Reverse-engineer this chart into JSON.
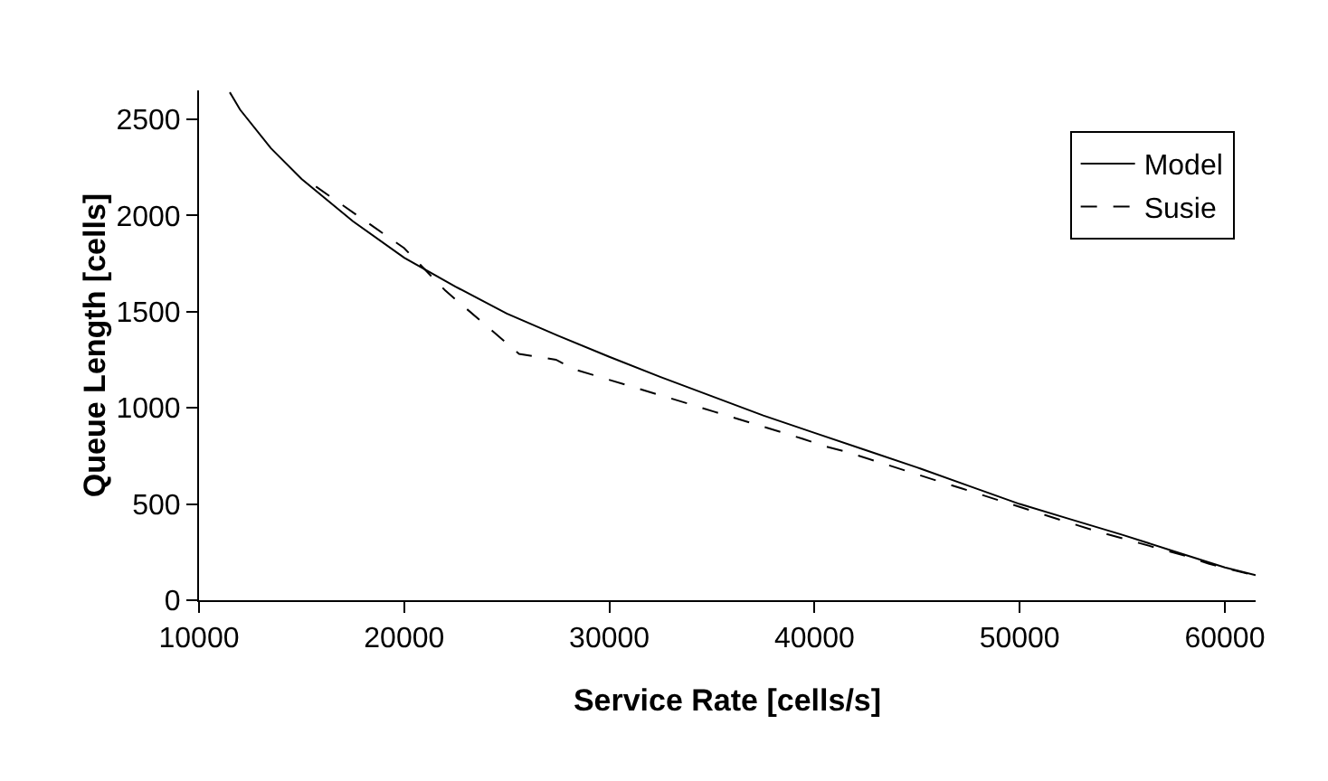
{
  "chart_data": {
    "type": "line",
    "xlabel": "Service Rate [cells/s]",
    "ylabel": "Queue Length [cells]",
    "xlim": [
      10000,
      61500
    ],
    "xticks": [
      10000,
      20000,
      30000,
      40000,
      50000,
      60000
    ],
    "ylim": [
      0,
      2650
    ],
    "yticks": [
      0,
      500,
      1000,
      1500,
      2000,
      2500
    ],
    "grid": false,
    "legend": "top right",
    "marker": "none",
    "series": [
      {
        "name": "Model",
        "color": "#000000",
        "line_style": "solid",
        "x": [
          11500,
          12000,
          13500,
          15000,
          17500,
          20000,
          22500,
          25000,
          27500,
          30000,
          32500,
          35000,
          37500,
          40000,
          42500,
          45000,
          47500,
          50000,
          52500,
          55000,
          57500,
          60000,
          61500
        ],
        "values": [
          2640,
          2550,
          2350,
          2190,
          1970,
          1780,
          1630,
          1490,
          1375,
          1265,
          1160,
          1060,
          960,
          870,
          780,
          690,
          595,
          500,
          420,
          340,
          255,
          170,
          130
        ]
      },
      {
        "name": "Susie",
        "color": "#000000",
        "line_style": "dashed",
        "x": [
          15700,
          20000,
          22000,
          25600,
          27400,
          28300,
          33900,
          35100,
          39400,
          40500,
          41600,
          46000,
          47200,
          52500,
          53700,
          58100,
          59200,
          61400
        ],
        "values": [
          2150,
          1830,
          1610,
          1280,
          1250,
          1200,
          1020,
          980,
          840,
          800,
          770,
          620,
          580,
          400,
          360,
          230,
          190,
          130
        ]
      }
    ]
  }
}
